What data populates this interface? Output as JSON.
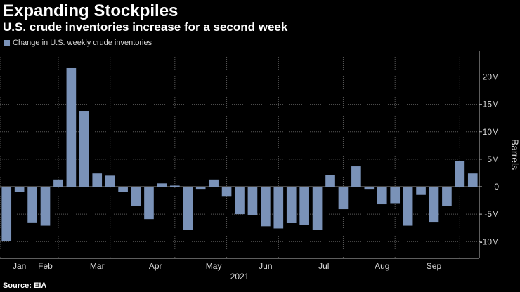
{
  "header": {
    "title": "Expanding Stockpiles",
    "subtitle": "U.S. crude inventories increase for a second week"
  },
  "legend": {
    "label": "Change in U.S. weekly crude inventories"
  },
  "source": "Source: EIA",
  "colors": {
    "background": "#000000",
    "bar": "#7a92b8",
    "grid": "#5a5a5a",
    "text": "#ffffff",
    "tick_text": "#d8d8d8"
  },
  "chart_data": {
    "type": "bar",
    "title": "Expanding Stockpiles",
    "subtitle": "U.S. crude inventories increase for a second week",
    "xlabel": "2021",
    "ylabel": "Barrels",
    "ylim": [
      -13000000,
      25000000
    ],
    "y_ticks": [
      20000000,
      15000000,
      10000000,
      5000000,
      0,
      -5000000,
      -10000000
    ],
    "y_tick_labels": [
      "20M",
      "15M",
      "10M",
      "5M",
      "0",
      "-5M",
      "-10M"
    ],
    "month_labels": [
      "Jan",
      "Feb",
      "Mar",
      "Apr",
      "May",
      "Jun",
      "Jul",
      "Aug",
      "Sep"
    ],
    "month_label_weeks": [
      1.5,
      3.5,
      7.5,
      12,
      16.5,
      20.5,
      25,
      29.5,
      33.5
    ],
    "month_boundaries": [
      0,
      4.5,
      8.5,
      13.5,
      17.5,
      21.5,
      26.5,
      30.5,
      35.5
    ],
    "grid": true,
    "legend_position": "top-left",
    "series": [
      {
        "name": "Change in U.S. weekly crude inventories",
        "values": [
          -9900000,
          -1000000,
          -6500000,
          -7100000,
          1300000,
          21600000,
          13800000,
          2400000,
          2000000,
          -900000,
          -3500000,
          -5900000,
          600000,
          200000,
          -7900000,
          -400000,
          1300000,
          -1700000,
          -5000000,
          -5200000,
          -7200000,
          -7600000,
          -6600000,
          -6900000,
          -7900000,
          2100000,
          -4100000,
          3700000,
          -400000,
          -3200000,
          -3000000,
          -7100000,
          -1500000,
          -6400000,
          -3500000,
          4600000,
          2400000
        ]
      }
    ]
  }
}
